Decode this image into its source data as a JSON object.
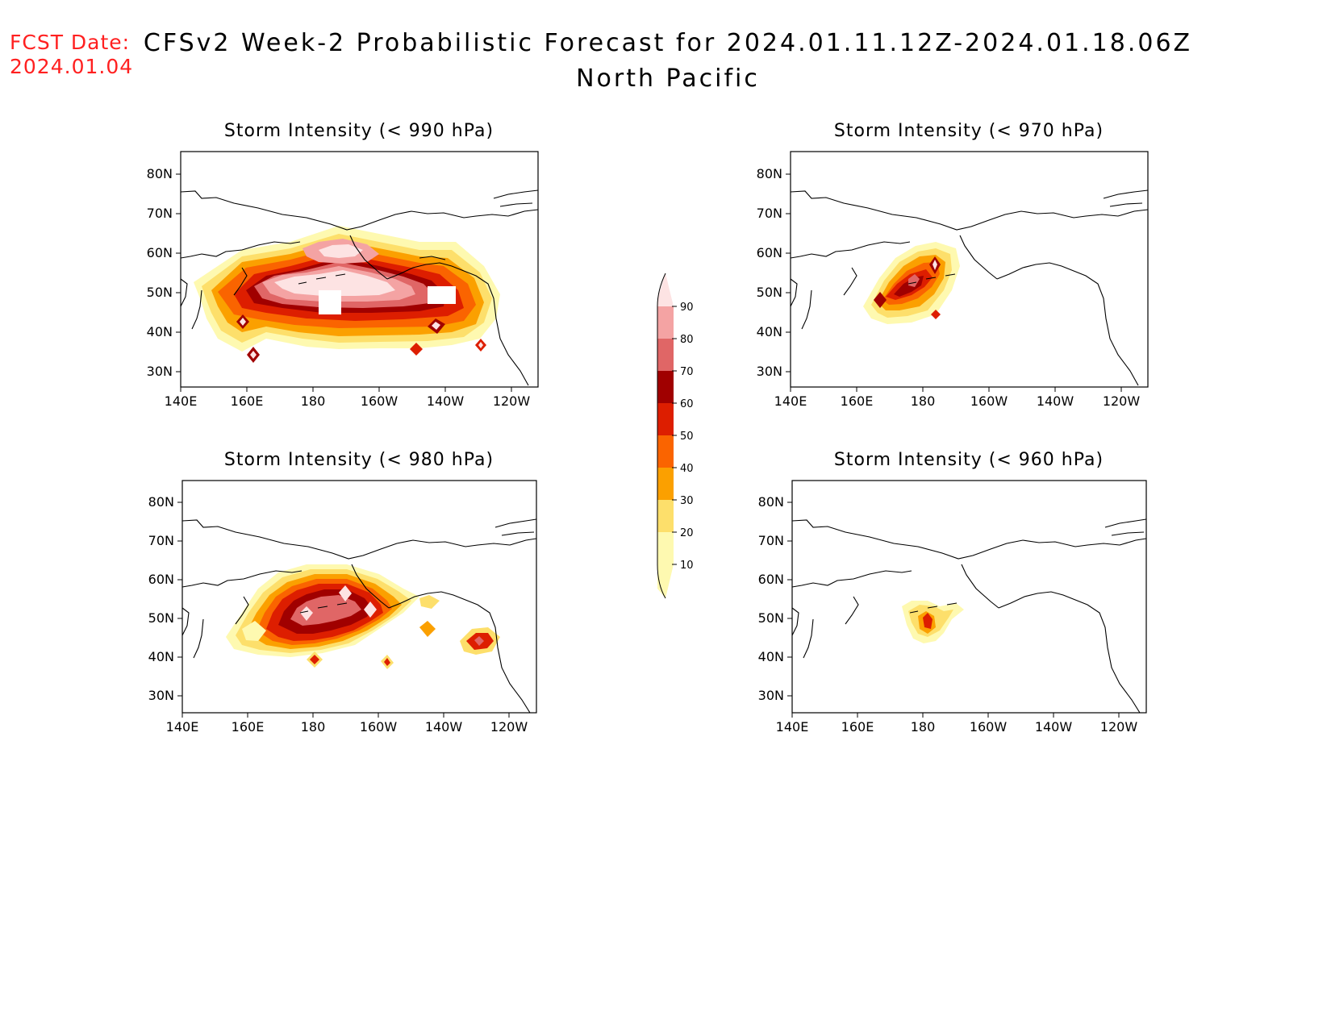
{
  "header": {
    "fcst_label": "FCST Date:",
    "fcst_date": "2024.01.04",
    "title_line1": "CFSv2 Week-2 Probabilistic Forecast for 2024.01.11.12Z-2024.01.18.06Z",
    "title_line2": "North Pacific"
  },
  "axes": {
    "x_ticks": [
      "140E",
      "160E",
      "180",
      "160W",
      "140W",
      "120W"
    ],
    "y_ticks": [
      "80N",
      "70N",
      "60N",
      "50N",
      "40N",
      "30N"
    ]
  },
  "panels": [
    {
      "title": "Storm Intensity (< 990 hPa)"
    },
    {
      "title": "Storm Intensity (< 970 hPa)"
    },
    {
      "title": "Storm Intensity (< 980 hPa)"
    },
    {
      "title": "Storm Intensity (< 960 hPa)"
    }
  ],
  "colorbar": {
    "labels": [
      "90",
      "80",
      "70",
      "60",
      "50",
      "40",
      "30",
      "20",
      "10"
    ],
    "colors": [
      "#fde3e3",
      "#f4a3a3",
      "#e06666",
      "#a00000",
      "#dd1e00",
      "#fa6400",
      "#fba000",
      "#fddf6b",
      "#fef9b0"
    ]
  }
}
